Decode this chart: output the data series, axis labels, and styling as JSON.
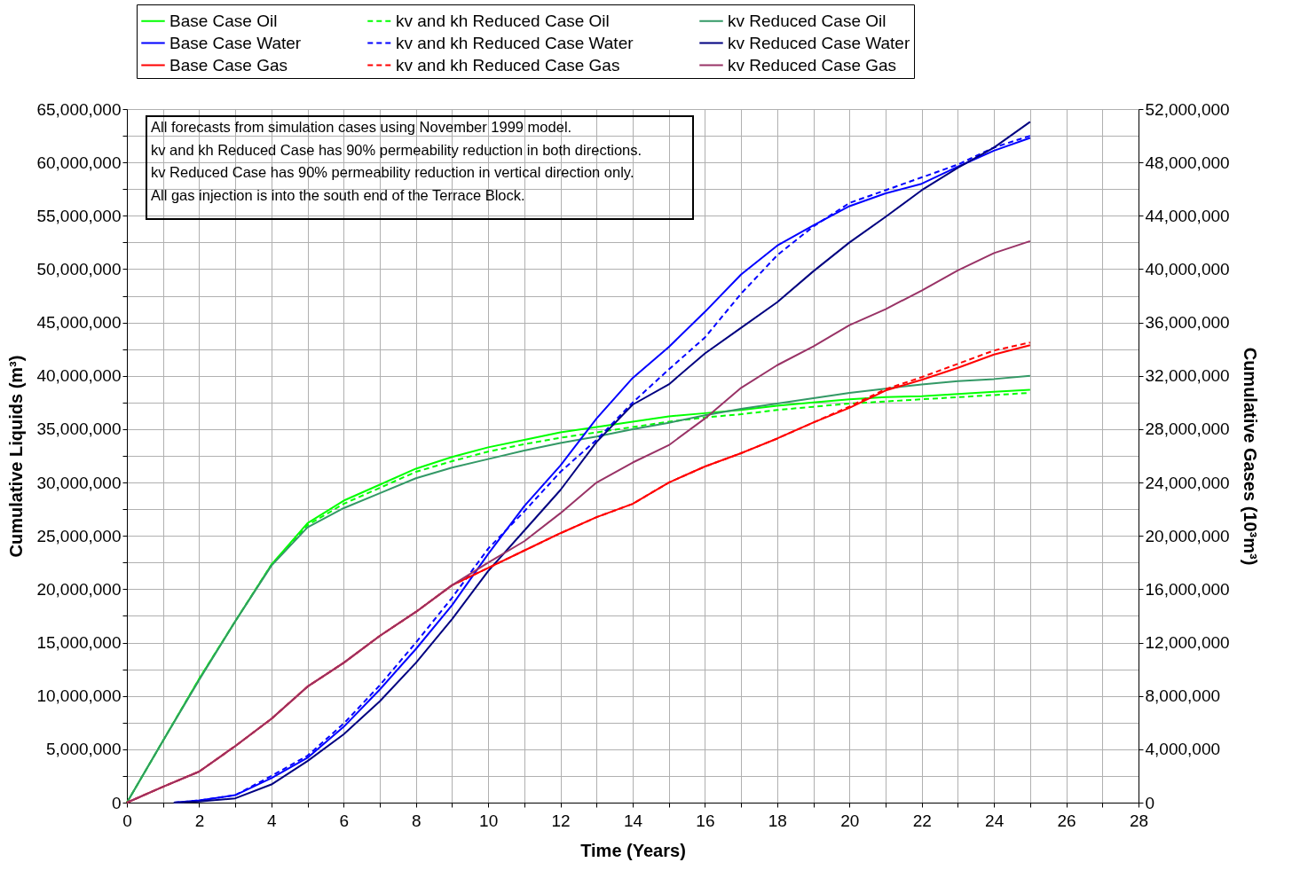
{
  "chart_data": {
    "type": "line",
    "xlabel": "Time (Years)",
    "ylabel": "Cumulative Liquids (m³)",
    "y2label": "Cumulative Gases (10³m³)",
    "xlim": [
      0,
      28
    ],
    "xticks": [
      0,
      {
        "value": 1,
        "label": null
      },
      2,
      {
        "value": 3,
        "label": null
      },
      4,
      {
        "value": 5,
        "label": null
      },
      6,
      {
        "value": 7,
        "label": null
      },
      8,
      {
        "value": 9,
        "label": null
      },
      10,
      {
        "value": 11,
        "label": null
      },
      12,
      {
        "value": 13,
        "label": null
      },
      14,
      {
        "value": 15,
        "label": null
      },
      16,
      {
        "value": 17,
        "label": null
      },
      18,
      {
        "value": 19,
        "label": null
      },
      20,
      {
        "value": 21,
        "label": null
      },
      22,
      {
        "value": 23,
        "label": null
      },
      24,
      {
        "value": 25,
        "label": null
      },
      26,
      {
        "value": 27,
        "label": null
      },
      28
    ],
    "ylim": [
      0,
      65000000
    ],
    "yticks": [
      {
        "value": 0,
        "label": "0"
      },
      {
        "value": 2500000,
        "label": null
      },
      {
        "value": 5000000,
        "label": "5,000,000"
      },
      {
        "value": 7500000,
        "label": null
      },
      {
        "value": 10000000,
        "label": "10,000,000"
      },
      {
        "value": 12500000,
        "label": null
      },
      {
        "value": 15000000,
        "label": "15,000,000"
      },
      {
        "value": 17500000,
        "label": null
      },
      {
        "value": 20000000,
        "label": "20,000,000"
      },
      {
        "value": 22500000,
        "label": null
      },
      {
        "value": 25000000,
        "label": "25,000,000"
      },
      {
        "value": 27500000,
        "label": null
      },
      {
        "value": 30000000,
        "label": "30,000,000"
      },
      {
        "value": 32500000,
        "label": null
      },
      {
        "value": 35000000,
        "label": "35,000,000"
      },
      {
        "value": 37500000,
        "label": null
      },
      {
        "value": 40000000,
        "label": "40,000,000"
      },
      {
        "value": 42500000,
        "label": null
      },
      {
        "value": 45000000,
        "label": "45,000,000"
      },
      {
        "value": 47500000,
        "label": null
      },
      {
        "value": 50000000,
        "label": "50,000,000"
      },
      {
        "value": 52500000,
        "label": null
      },
      {
        "value": 55000000,
        "label": "55,000,000"
      },
      {
        "value": 57500000,
        "label": null
      },
      {
        "value": 60000000,
        "label": "60,000,000"
      },
      {
        "value": 62500000,
        "label": null
      },
      {
        "value": 65000000,
        "label": "65,000,000"
      }
    ],
    "y2lim": [
      0,
      52000000
    ],
    "y2ticks": [
      {
        "value": 0,
        "label": "0"
      },
      {
        "value": 4000000,
        "label": "4,000,000"
      },
      {
        "value": 8000000,
        "label": "8,000,000"
      },
      {
        "value": 12000000,
        "label": "12,000,000"
      },
      {
        "value": 16000000,
        "label": "16,000,000"
      },
      {
        "value": 20000000,
        "label": "20,000,000"
      },
      {
        "value": 24000000,
        "label": "24,000,000"
      },
      {
        "value": 28000000,
        "label": "28,000,000"
      },
      {
        "value": 32000000,
        "label": "32,000,000"
      },
      {
        "value": 36000000,
        "label": "36,000,000"
      },
      {
        "value": 40000000,
        "label": "40,000,000"
      },
      {
        "value": 44000000,
        "label": "44,000,000"
      },
      {
        "value": 48000000,
        "label": "48,000,000"
      },
      {
        "value": 52000000,
        "label": "52,000,000"
      }
    ],
    "grid": true,
    "legend": "top",
    "marker": "none",
    "annotations": [
      "All forecasts from simulation cases using November 1999 model.",
      "kv and kh Reduced Case has 90% permeability reduction in both directions.",
      "kv Reduced Case has 90% permeability reduction in vertical direction only.",
      "All gas injection is into the south end of the Terrace Block."
    ],
    "series": [
      {
        "name": "Base Case Oil",
        "color": "#00ff00",
        "line_style": "solid",
        "x": [
          0,
          1,
          2,
          3,
          4,
          5,
          6,
          7,
          8,
          9,
          10,
          11,
          12,
          13,
          14,
          15,
          16,
          17,
          18,
          19,
          20,
          21,
          22,
          23,
          24,
          25
        ],
        "values": [
          0,
          5800000,
          11600000,
          17000000,
          22300000,
          26200000,
          28300000,
          29800000,
          31300000,
          32400000,
          33300000,
          34000000,
          34700000,
          35200000,
          35700000,
          36200000,
          36500000,
          36800000,
          37200000,
          37500000,
          37800000,
          38000000,
          38100000,
          38300000,
          38500000,
          38700000
        ]
      },
      {
        "name": "kv and kh Reduced Case Oil",
        "color": "#00ff00",
        "line_style": "dashed",
        "x": [
          0,
          1,
          2,
          3,
          4,
          5,
          6,
          7,
          8,
          9,
          10,
          11,
          12,
          13,
          14,
          15,
          16,
          17,
          18,
          19,
          20,
          21,
          22,
          23,
          24,
          25
        ],
        "values": [
          0,
          5800000,
          11600000,
          17000000,
          22300000,
          26000000,
          28000000,
          29500000,
          31000000,
          32000000,
          32900000,
          33600000,
          34200000,
          34700000,
          35200000,
          35700000,
          36100000,
          36400000,
          36800000,
          37100000,
          37400000,
          37600000,
          37800000,
          38000000,
          38200000,
          38400000
        ]
      },
      {
        "name": "kv Reduced Case Oil",
        "color": "#339966",
        "line_style": "solid",
        "x": [
          0,
          1,
          2,
          3,
          4,
          5,
          6,
          7,
          8,
          9,
          10,
          11,
          12,
          13,
          14,
          15,
          16,
          17,
          18,
          19,
          20,
          21,
          22,
          23,
          24,
          25
        ],
        "values": [
          0,
          5800000,
          11500000,
          17000000,
          22200000,
          25800000,
          27600000,
          29000000,
          30400000,
          31400000,
          32200000,
          33000000,
          33700000,
          34300000,
          35000000,
          35600000,
          36300000,
          36900000,
          37400000,
          37900000,
          38400000,
          38800000,
          39200000,
          39500000,
          39700000,
          40000000
        ]
      },
      {
        "name": "Base Case Water",
        "color": "#0000ff",
        "line_style": "solid",
        "x": [
          1.3,
          2,
          3,
          4,
          5,
          6,
          7,
          8,
          9,
          10,
          11,
          12,
          13,
          14,
          15,
          16,
          17,
          18,
          19,
          20,
          21,
          22,
          23,
          24,
          25
        ],
        "values": [
          0,
          200000,
          700000,
          2300000,
          4200000,
          7100000,
          10600000,
          14400000,
          18500000,
          23300000,
          27800000,
          31600000,
          36000000,
          39800000,
          42700000,
          46000000,
          49500000,
          52200000,
          54100000,
          55900000,
          57100000,
          58000000,
          59600000,
          61100000,
          62300000
        ]
      },
      {
        "name": "kv and kh Reduced Case Water",
        "color": "#0000ff",
        "line_style": "dashed",
        "x": [
          1.3,
          2,
          3,
          4,
          5,
          6,
          7,
          8,
          9,
          10,
          11,
          12,
          13,
          14,
          15,
          16,
          17,
          18,
          19,
          20,
          21,
          22,
          23,
          24,
          25
        ],
        "values": [
          0,
          200000,
          700000,
          2500000,
          4400000,
          7400000,
          11000000,
          15000000,
          19200000,
          23800000,
          27300000,
          31000000,
          34000000,
          37500000,
          40600000,
          43600000,
          47700000,
          51300000,
          54000000,
          56200000,
          57400000,
          58600000,
          59800000,
          61400000,
          62500000
        ]
      },
      {
        "name": "kv Reduced Case Water",
        "color": "#000080",
        "line_style": "solid",
        "x": [
          1.3,
          2,
          3,
          4,
          5,
          6,
          7,
          8,
          9,
          10,
          11,
          12,
          13,
          14,
          15,
          16,
          17,
          18,
          19,
          20,
          21,
          22,
          23,
          24,
          25
        ],
        "values": [
          0,
          100000,
          400000,
          1700000,
          3900000,
          6400000,
          9500000,
          13100000,
          17200000,
          21700000,
          25500000,
          29300000,
          33800000,
          37300000,
          39200000,
          42100000,
          44500000,
          46900000,
          49800000,
          52500000,
          54900000,
          57400000,
          59500000,
          61400000,
          63800000
        ]
      },
      {
        "name": "Base Case Gas",
        "color": "#ff0000",
        "line_style": "solid",
        "axis": "y2",
        "x": [
          0,
          1,
          2,
          3,
          4,
          5,
          6,
          7,
          8,
          9,
          10,
          11,
          12,
          13,
          14,
          15,
          16,
          17,
          18,
          19,
          20,
          21,
          22,
          23,
          24,
          25
        ],
        "values": [
          0,
          1190000,
          2330000,
          4240000,
          6280000,
          8700000,
          10480000,
          12500000,
          14300000,
          16300000,
          17600000,
          18900000,
          20200000,
          21400000,
          22400000,
          24000000,
          25200000,
          26200000,
          27300000,
          28500000,
          29600000,
          30900000,
          31700000,
          32600000,
          33600000,
          34300000
        ]
      },
      {
        "name": "kv and kh Reduced Case Gas",
        "color": "#ff0000",
        "line_style": "dashed",
        "axis": "y2",
        "x": [
          0,
          1,
          2,
          3,
          4,
          5,
          6,
          7,
          8,
          9,
          10,
          11,
          12,
          13,
          14,
          15,
          16,
          17,
          18,
          19,
          20,
          21,
          22,
          23,
          24,
          25
        ],
        "values": [
          0,
          1190000,
          2330000,
          4240000,
          6280000,
          8700000,
          10480000,
          12500000,
          14300000,
          16300000,
          17600000,
          18900000,
          20200000,
          21400000,
          22400000,
          24000000,
          25200000,
          26200000,
          27300000,
          28500000,
          29700000,
          31000000,
          31900000,
          32900000,
          33900000,
          34500000
        ]
      },
      {
        "name": "kv Reduced Case Gas",
        "color": "#993366",
        "line_style": "solid",
        "axis": "y2",
        "x": [
          0,
          1,
          2,
          3,
          4,
          5,
          6,
          7,
          8,
          9,
          10,
          11,
          12,
          13,
          14,
          15,
          16,
          17,
          18,
          19,
          20,
          21,
          22,
          23,
          24,
          25
        ],
        "values": [
          0,
          1190000,
          2330000,
          4240000,
          6280000,
          8700000,
          10480000,
          12500000,
          14300000,
          16300000,
          18000000,
          19600000,
          21700000,
          24000000,
          25500000,
          26800000,
          28800000,
          31100000,
          32800000,
          34200000,
          35800000,
          37000000,
          38400000,
          39900000,
          41200000,
          42100000
        ]
      }
    ]
  }
}
